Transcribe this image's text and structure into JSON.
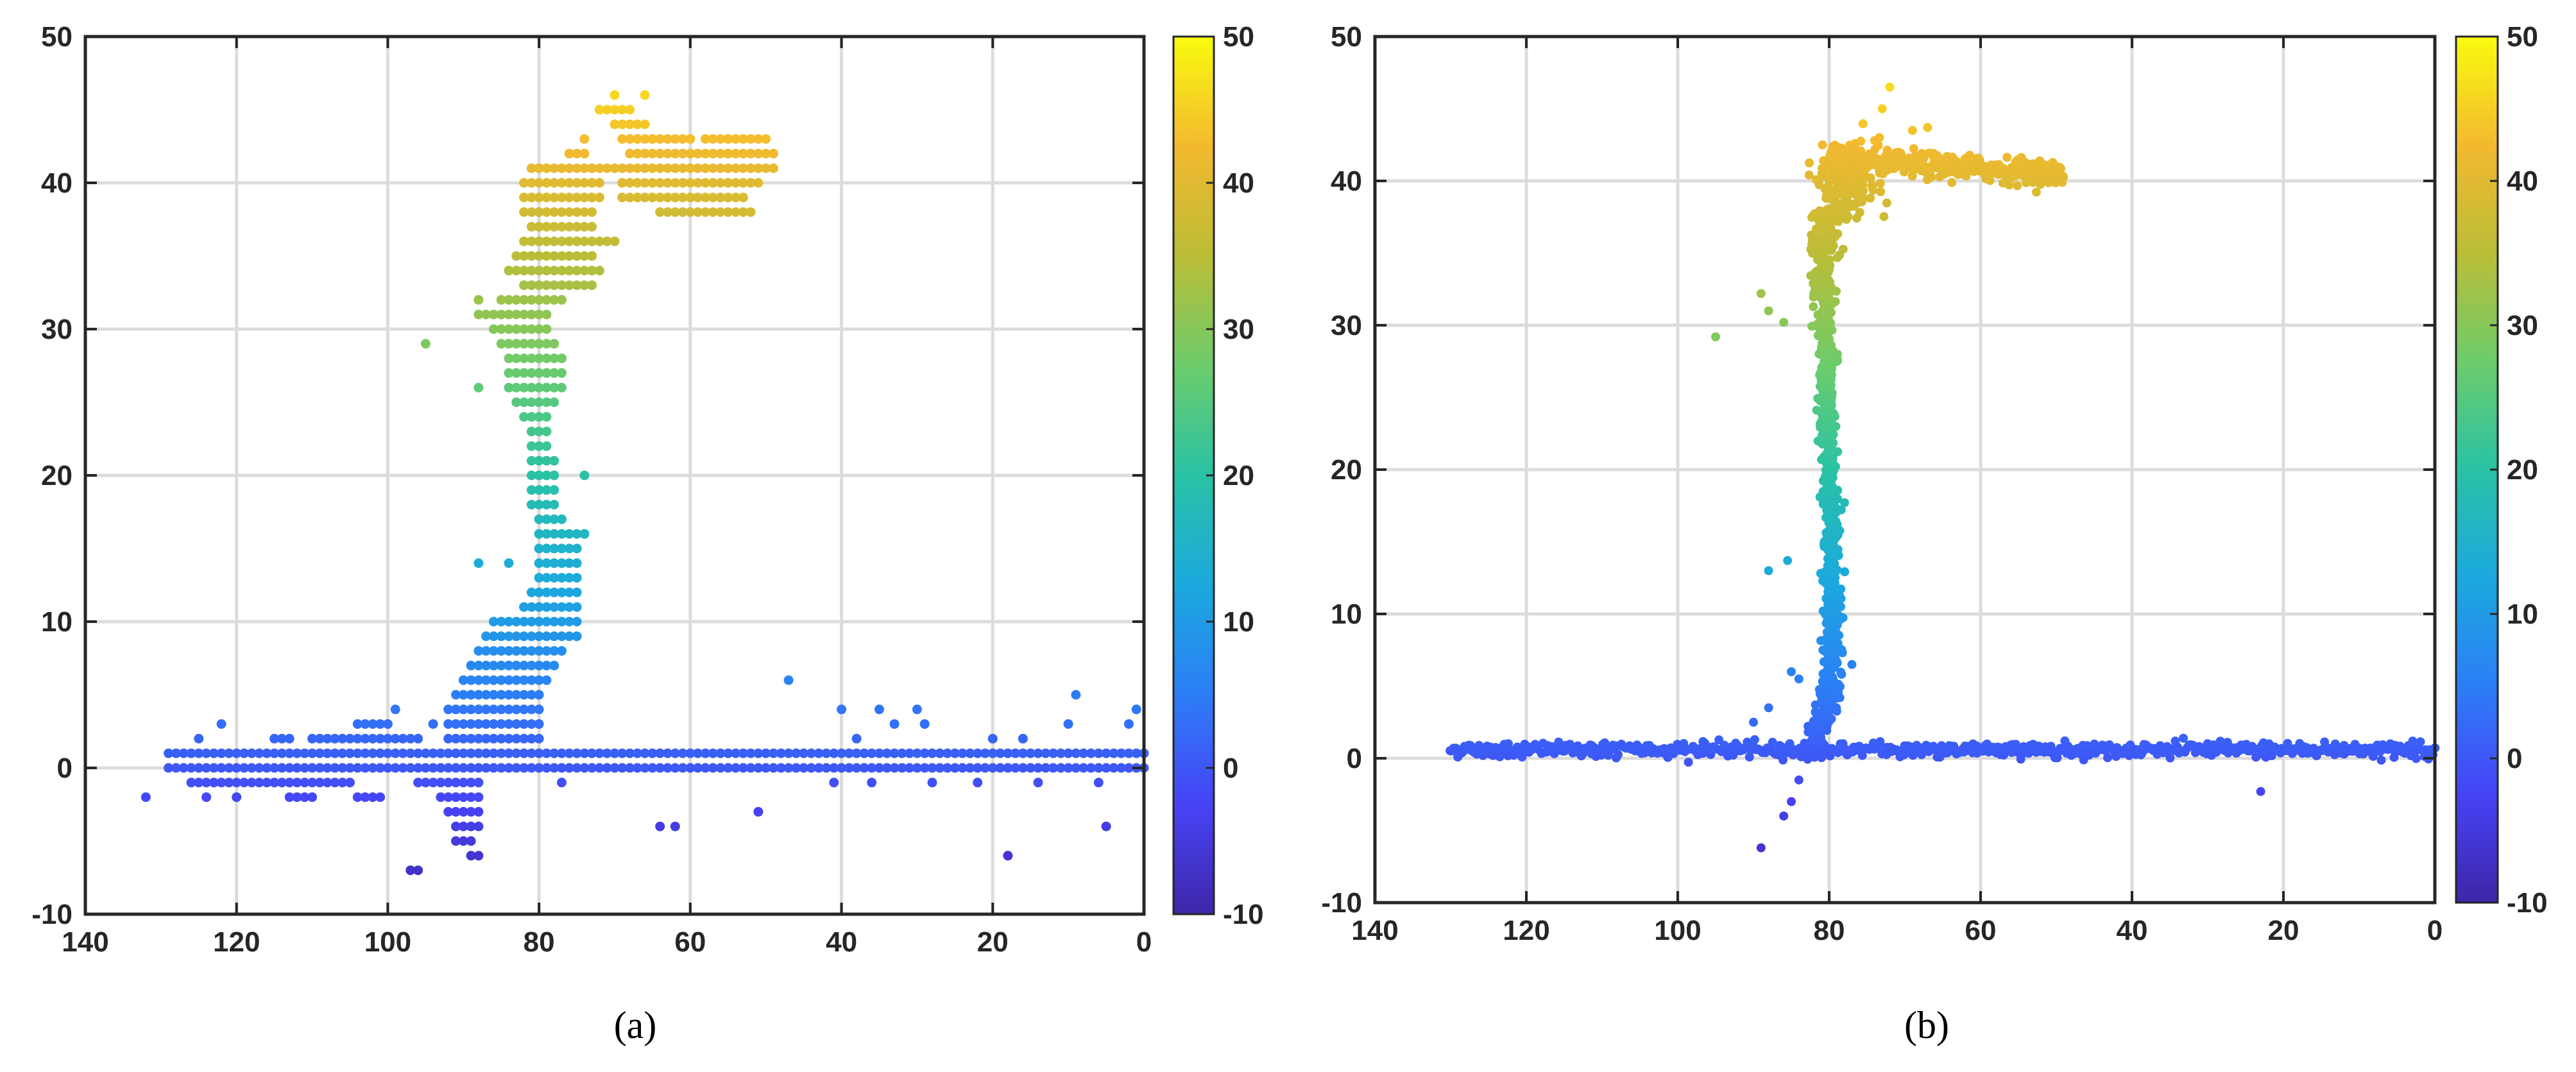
{
  "colormap": [
    "#3e26a8",
    "#4743f6",
    "#2c7ef6",
    "#1ba9de",
    "#29c2a5",
    "#6dcc6b",
    "#bbbd37",
    "#f3b92f",
    "#f9fb0e"
  ],
  "panels": [
    {
      "caption": "(a)",
      "xticks": [
        "140",
        "120",
        "100",
        "80",
        "60",
        "40",
        "20",
        "0"
      ],
      "yticks": [
        "50",
        "40",
        "30",
        "20",
        "10",
        "0",
        "-10"
      ],
      "cticks": [
        "50",
        "40",
        "30",
        "20",
        "10",
        "0",
        "-10"
      ]
    },
    {
      "caption": "(b)",
      "xticks": [
        "140",
        "120",
        "100",
        "80",
        "60",
        "40",
        "20",
        "0"
      ],
      "yticks": [
        "50",
        "40",
        "30",
        "20",
        "10",
        "0",
        "-10"
      ],
      "cticks": [
        "50",
        "40",
        "30",
        "20",
        "10",
        "0",
        "-10"
      ]
    }
  ],
  "chart_data": [
    {
      "type": "scatter",
      "panel": "a",
      "title": "",
      "xlabel": "",
      "ylabel": "",
      "xlim": [
        140,
        0
      ],
      "x_reversed": true,
      "ylim": [
        -10,
        50
      ],
      "grid": true,
      "colorbar": {
        "range": [
          -10,
          50
        ],
        "colormap": "parula",
        "color_by": "y"
      },
      "marker_grid": "points on a regular 1 x 1 lattice",
      "series": [
        {
          "name": "",
          "description_points": "ground band",
          "band_rows_y": [
            0,
            1
          ],
          "band_x_range": [
            129,
            0
          ],
          "lower_rows": [
            {
              "y": -1,
              "x_ranges": [
                [
                  126,
                  105
                ],
                [
                  96,
                  88
                ]
              ]
            },
            {
              "y": -2,
              "x_ranges": [
                [
                  113,
                  110
                ],
                [
                  104,
                  101
                ],
                [
                  93,
                  88
                ]
              ]
            },
            {
              "y": -3,
              "x_ranges": [
                [
                  92,
                  88
                ]
              ]
            },
            {
              "y": -4,
              "x_ranges": [
                [
                  91,
                  88
                ]
              ]
            },
            {
              "y": -5,
              "x_ranges": [
                [
                  91,
                  89
                ]
              ]
            },
            {
              "y": -6,
              "x_ranges": [
                [
                  89,
                  88
                ]
              ]
            },
            {
              "y": -7,
              "x_ranges": [
                [
                  97,
                  96
                ]
              ]
            }
          ],
          "upper_rows": [
            {
              "y": 2,
              "x_ranges": [
                [
                  125,
                  125
                ],
                [
                  115,
                  113
                ],
                [
                  110,
                  96
                ],
                [
                  92,
                  80
                ]
              ]
            },
            {
              "y": 3,
              "x_ranges": [
                [
                  122,
                  122
                ],
                [
                  104,
                  100
                ],
                [
                  94,
                  94
                ],
                [
                  92,
                  80
                ]
              ]
            },
            {
              "y": 4,
              "x_ranges": [
                [
                  99,
                  99
                ],
                [
                  92,
                  80
                ]
              ]
            }
          ],
          "scattered_points": [
            [
              132,
              -2
            ],
            [
              124,
              -2
            ],
            [
              120,
              -2
            ],
            [
              77,
              -1
            ],
            [
              64,
              -4
            ],
            [
              62,
              -4
            ],
            [
              51,
              -3
            ],
            [
              18,
              -6
            ],
            [
              5,
              -4
            ],
            [
              47,
              6
            ],
            [
              40,
              4
            ],
            [
              35,
              4
            ],
            [
              30,
              4
            ],
            [
              9,
              5
            ],
            [
              1,
              4
            ],
            [
              38,
              2
            ],
            [
              33,
              3
            ],
            [
              29,
              3
            ],
            [
              20,
              2
            ],
            [
              16,
              2
            ],
            [
              10,
              3
            ],
            [
              2,
              3
            ],
            [
              41,
              -1
            ],
            [
              36,
              -1
            ],
            [
              28,
              -1
            ],
            [
              22,
              -1
            ],
            [
              14,
              -1
            ],
            [
              6,
              -1
            ]
          ]
        },
        {
          "name": "",
          "description_points": "near-vertical cluster rising to a plateau",
          "rows": [
            {
              "y": 5,
              "x_ranges": [
                [
                  91,
                  80
                ]
              ]
            },
            {
              "y": 6,
              "x_ranges": [
                [
                  90,
                  79
                ]
              ]
            },
            {
              "y": 7,
              "x_ranges": [
                [
                  89,
                  78
                ]
              ]
            },
            {
              "y": 8,
              "x_ranges": [
                [
                  88,
                  77
                ]
              ]
            },
            {
              "y": 9,
              "x_ranges": [
                [
                  87,
                  75
                ]
              ]
            },
            {
              "y": 10,
              "x_ranges": [
                [
                  86,
                  75
                ]
              ]
            },
            {
              "y": 11,
              "x_ranges": [
                [
                  82,
                  75
                ]
              ]
            },
            {
              "y": 12,
              "x_ranges": [
                [
                  81,
                  75
                ]
              ]
            },
            {
              "y": 13,
              "x_ranges": [
                [
                  80,
                  75
                ]
              ]
            },
            {
              "y": 14,
              "x_ranges": [
                [
                  80,
                  75
                ]
              ]
            },
            {
              "y": 15,
              "x_ranges": [
                [
                  80,
                  75
                ]
              ]
            },
            {
              "y": 16,
              "x_ranges": [
                [
                  80,
                  74
                ]
              ]
            },
            {
              "y": 17,
              "x_ranges": [
                [
                  80,
                  77
                ]
              ]
            },
            {
              "y": 18,
              "x_ranges": [
                [
                  81,
                  78
                ]
              ]
            },
            {
              "y": 19,
              "x_ranges": [
                [
                  81,
                  78
                ]
              ]
            },
            {
              "y": 20,
              "x_ranges": [
                [
                  81,
                  78
                ]
              ]
            },
            {
              "y": 21,
              "x_ranges": [
                [
                  81,
                  78
                ]
              ]
            },
            {
              "y": 22,
              "x_ranges": [
                [
                  81,
                  79
                ]
              ]
            },
            {
              "y": 23,
              "x_ranges": [
                [
                  81,
                  79
                ]
              ]
            },
            {
              "y": 24,
              "x_ranges": [
                [
                  82,
                  79
                ]
              ]
            },
            {
              "y": 25,
              "x_ranges": [
                [
                  83,
                  78
                ]
              ]
            },
            {
              "y": 26,
              "x_ranges": [
                [
                  84,
                  77
                ]
              ]
            },
            {
              "y": 27,
              "x_ranges": [
                [
                  84,
                  77
                ]
              ]
            },
            {
              "y": 28,
              "x_ranges": [
                [
                  84,
                  77
                ]
              ]
            },
            {
              "y": 29,
              "x_ranges": [
                [
                  85,
                  78
                ]
              ]
            },
            {
              "y": 30,
              "x_ranges": [
                [
                  86,
                  79
                ]
              ]
            },
            {
              "y": 31,
              "x_ranges": [
                [
                  88,
                  79
                ]
              ]
            },
            {
              "y": 32,
              "x_ranges": [
                [
                  85,
                  77
                ]
              ]
            },
            {
              "y": 33,
              "x_ranges": [
                [
                  82,
                  73
                ]
              ]
            },
            {
              "y": 34,
              "x_ranges": [
                [
                  84,
                  72
                ]
              ]
            },
            {
              "y": 35,
              "x_ranges": [
                [
                  83,
                  73
                ]
              ]
            },
            {
              "y": 36,
              "x_ranges": [
                [
                  82,
                  70
                ]
              ]
            },
            {
              "y": 37,
              "x_ranges": [
                [
                  81,
                  73
                ]
              ]
            },
            {
              "y": 38,
              "x_ranges": [
                [
                  82,
                  73
                ],
                [
                  64,
                  52
                ]
              ]
            },
            {
              "y": 39,
              "x_ranges": [
                [
                  82,
                  72
                ],
                [
                  69,
                  53
                ]
              ]
            },
            {
              "y": 40,
              "x_ranges": [
                [
                  82,
                  72
                ],
                [
                  69,
                  51
                ]
              ]
            },
            {
              "y": 41,
              "x_ranges": [
                [
                  81,
                  49
                ]
              ]
            },
            {
              "y": 42,
              "x_ranges": [
                [
                  76,
                  74
                ],
                [
                  68,
                  49
                ]
              ]
            },
            {
              "y": 43,
              "x_ranges": [
                [
                  74,
                  74
                ],
                [
                  69,
                  60
                ],
                [
                  58,
                  50
                ]
              ]
            },
            {
              "y": 44,
              "x_ranges": [
                [
                  70,
                  66
                ]
              ]
            },
            {
              "y": 45,
              "x_ranges": [
                [
                  72,
                  68
                ]
              ]
            },
            {
              "y": 46,
              "x_ranges": [
                [
                  70,
                  70
                ],
                [
                  66,
                  66
                ]
              ]
            }
          ],
          "scattered_points": [
            [
              95,
              29
            ],
            [
              88,
              26
            ],
            [
              88,
              32
            ],
            [
              88,
              14
            ],
            [
              84,
              14
            ],
            [
              74,
              16
            ],
            [
              74,
              20
            ],
            [
              75,
              36
            ]
          ]
        }
      ]
    },
    {
      "type": "scatter",
      "panel": "b",
      "title": "",
      "xlabel": "",
      "ylabel": "",
      "xlim": [
        140,
        0
      ],
      "x_reversed": true,
      "ylim": [
        -10,
        50
      ],
      "grid": true,
      "colorbar": {
        "range": [
          -10,
          50
        ],
        "colormap": "parula",
        "color_by": "y"
      },
      "series": [
        {
          "name": "",
          "description_points": "ground band (continuous)",
          "x_range": [
            130,
            0
          ],
          "y_center": 0.6,
          "y_spread": 0.5
        },
        {
          "name": "",
          "description_points": "thin vertical cluster with plateau",
          "profile": [
            {
              "y": 0,
              "x_center": 82,
              "x_spread": 1.5
            },
            {
              "y": 4,
              "x_center": 80,
              "x_spread": 1.2
            },
            {
              "y": 10,
              "x_center": 79.5,
              "x_spread": 1
            },
            {
              "y": 20,
              "x_center": 80,
              "x_spread": 0.8
            },
            {
              "y": 30,
              "x_center": 80.5,
              "x_spread": 1
            },
            {
              "y": 35,
              "x_center": 81,
              "x_spread": 1.3
            },
            {
              "y": 38,
              "x_center": 80,
              "x_spread": 1.5
            }
          ],
          "plateau": {
            "x_range": [
              80,
              49
            ],
            "y_start": 41.5,
            "y_end": 40.5,
            "y_spread": 0.6
          },
          "scattered_points": [
            [
              95,
              29.2
            ],
            [
              89,
              32.2
            ],
            [
              88,
              31
            ],
            [
              86,
              30.2
            ],
            [
              88,
              13
            ],
            [
              85.5,
              13.7
            ],
            [
              72,
              46.5
            ],
            [
              73,
              45
            ],
            [
              69,
              43.5
            ],
            [
              67,
              43.7
            ],
            [
              74,
              42.8
            ],
            [
              89,
              -6.2
            ],
            [
              86,
              -4
            ],
            [
              85,
              -3
            ],
            [
              84,
              -1.5
            ],
            [
              23,
              -2.3
            ],
            [
              90,
              2.5
            ],
            [
              88,
              3.5
            ],
            [
              85,
              6
            ],
            [
              84,
              5.5
            ],
            [
              77,
              6.5
            ]
          ]
        }
      ]
    }
  ]
}
